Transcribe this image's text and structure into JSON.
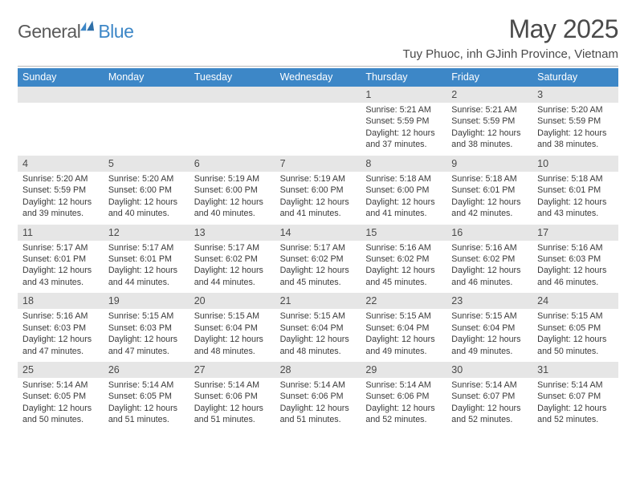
{
  "logo": {
    "word1": "General",
    "word2": "Blue"
  },
  "title": "May 2025",
  "location": "Tuy Phuoc, inh GJinh Province, Vietnam",
  "dow": [
    "Sunday",
    "Monday",
    "Tuesday",
    "Wednesday",
    "Thursday",
    "Friday",
    "Saturday"
  ],
  "colors": {
    "header_bg": "#3d87c7",
    "band_bg": "#e6e6e6",
    "rule": "#b8b8b8",
    "title_color": "#4a4a4a",
    "logo_gray": "#5a5a5a",
    "logo_blue": "#3d87c7"
  },
  "weeks": [
    {
      "nums": [
        "",
        "",
        "",
        "",
        "1",
        "2",
        "3"
      ],
      "cells": [
        null,
        null,
        null,
        null,
        {
          "sunrise": "5:21 AM",
          "sunset": "5:59 PM",
          "dl_h": 12,
          "dl_m": 37
        },
        {
          "sunrise": "5:21 AM",
          "sunset": "5:59 PM",
          "dl_h": 12,
          "dl_m": 38
        },
        {
          "sunrise": "5:20 AM",
          "sunset": "5:59 PM",
          "dl_h": 12,
          "dl_m": 38
        }
      ]
    },
    {
      "nums": [
        "4",
        "5",
        "6",
        "7",
        "8",
        "9",
        "10"
      ],
      "cells": [
        {
          "sunrise": "5:20 AM",
          "sunset": "5:59 PM",
          "dl_h": 12,
          "dl_m": 39
        },
        {
          "sunrise": "5:20 AM",
          "sunset": "6:00 PM",
          "dl_h": 12,
          "dl_m": 40
        },
        {
          "sunrise": "5:19 AM",
          "sunset": "6:00 PM",
          "dl_h": 12,
          "dl_m": 40
        },
        {
          "sunrise": "5:19 AM",
          "sunset": "6:00 PM",
          "dl_h": 12,
          "dl_m": 41
        },
        {
          "sunrise": "5:18 AM",
          "sunset": "6:00 PM",
          "dl_h": 12,
          "dl_m": 41
        },
        {
          "sunrise": "5:18 AM",
          "sunset": "6:01 PM",
          "dl_h": 12,
          "dl_m": 42
        },
        {
          "sunrise": "5:18 AM",
          "sunset": "6:01 PM",
          "dl_h": 12,
          "dl_m": 43
        }
      ]
    },
    {
      "nums": [
        "11",
        "12",
        "13",
        "14",
        "15",
        "16",
        "17"
      ],
      "cells": [
        {
          "sunrise": "5:17 AM",
          "sunset": "6:01 PM",
          "dl_h": 12,
          "dl_m": 43
        },
        {
          "sunrise": "5:17 AM",
          "sunset": "6:01 PM",
          "dl_h": 12,
          "dl_m": 44
        },
        {
          "sunrise": "5:17 AM",
          "sunset": "6:02 PM",
          "dl_h": 12,
          "dl_m": 44
        },
        {
          "sunrise": "5:17 AM",
          "sunset": "6:02 PM",
          "dl_h": 12,
          "dl_m": 45
        },
        {
          "sunrise": "5:16 AM",
          "sunset": "6:02 PM",
          "dl_h": 12,
          "dl_m": 45
        },
        {
          "sunrise": "5:16 AM",
          "sunset": "6:02 PM",
          "dl_h": 12,
          "dl_m": 46
        },
        {
          "sunrise": "5:16 AM",
          "sunset": "6:03 PM",
          "dl_h": 12,
          "dl_m": 46
        }
      ]
    },
    {
      "nums": [
        "18",
        "19",
        "20",
        "21",
        "22",
        "23",
        "24"
      ],
      "cells": [
        {
          "sunrise": "5:16 AM",
          "sunset": "6:03 PM",
          "dl_h": 12,
          "dl_m": 47
        },
        {
          "sunrise": "5:15 AM",
          "sunset": "6:03 PM",
          "dl_h": 12,
          "dl_m": 47
        },
        {
          "sunrise": "5:15 AM",
          "sunset": "6:04 PM",
          "dl_h": 12,
          "dl_m": 48
        },
        {
          "sunrise": "5:15 AM",
          "sunset": "6:04 PM",
          "dl_h": 12,
          "dl_m": 48
        },
        {
          "sunrise": "5:15 AM",
          "sunset": "6:04 PM",
          "dl_h": 12,
          "dl_m": 49
        },
        {
          "sunrise": "5:15 AM",
          "sunset": "6:04 PM",
          "dl_h": 12,
          "dl_m": 49
        },
        {
          "sunrise": "5:15 AM",
          "sunset": "6:05 PM",
          "dl_h": 12,
          "dl_m": 50
        }
      ]
    },
    {
      "nums": [
        "25",
        "26",
        "27",
        "28",
        "29",
        "30",
        "31"
      ],
      "cells": [
        {
          "sunrise": "5:14 AM",
          "sunset": "6:05 PM",
          "dl_h": 12,
          "dl_m": 50
        },
        {
          "sunrise": "5:14 AM",
          "sunset": "6:05 PM",
          "dl_h": 12,
          "dl_m": 51
        },
        {
          "sunrise": "5:14 AM",
          "sunset": "6:06 PM",
          "dl_h": 12,
          "dl_m": 51
        },
        {
          "sunrise": "5:14 AM",
          "sunset": "6:06 PM",
          "dl_h": 12,
          "dl_m": 51
        },
        {
          "sunrise": "5:14 AM",
          "sunset": "6:06 PM",
          "dl_h": 12,
          "dl_m": 52
        },
        {
          "sunrise": "5:14 AM",
          "sunset": "6:07 PM",
          "dl_h": 12,
          "dl_m": 52
        },
        {
          "sunrise": "5:14 AM",
          "sunset": "6:07 PM",
          "dl_h": 12,
          "dl_m": 52
        }
      ]
    }
  ],
  "labels": {
    "sunrise": "Sunrise:",
    "sunset": "Sunset:",
    "daylight_prefix": "Daylight:",
    "hours_word": "hours",
    "and_word": "and",
    "minutes_word": "minutes."
  }
}
